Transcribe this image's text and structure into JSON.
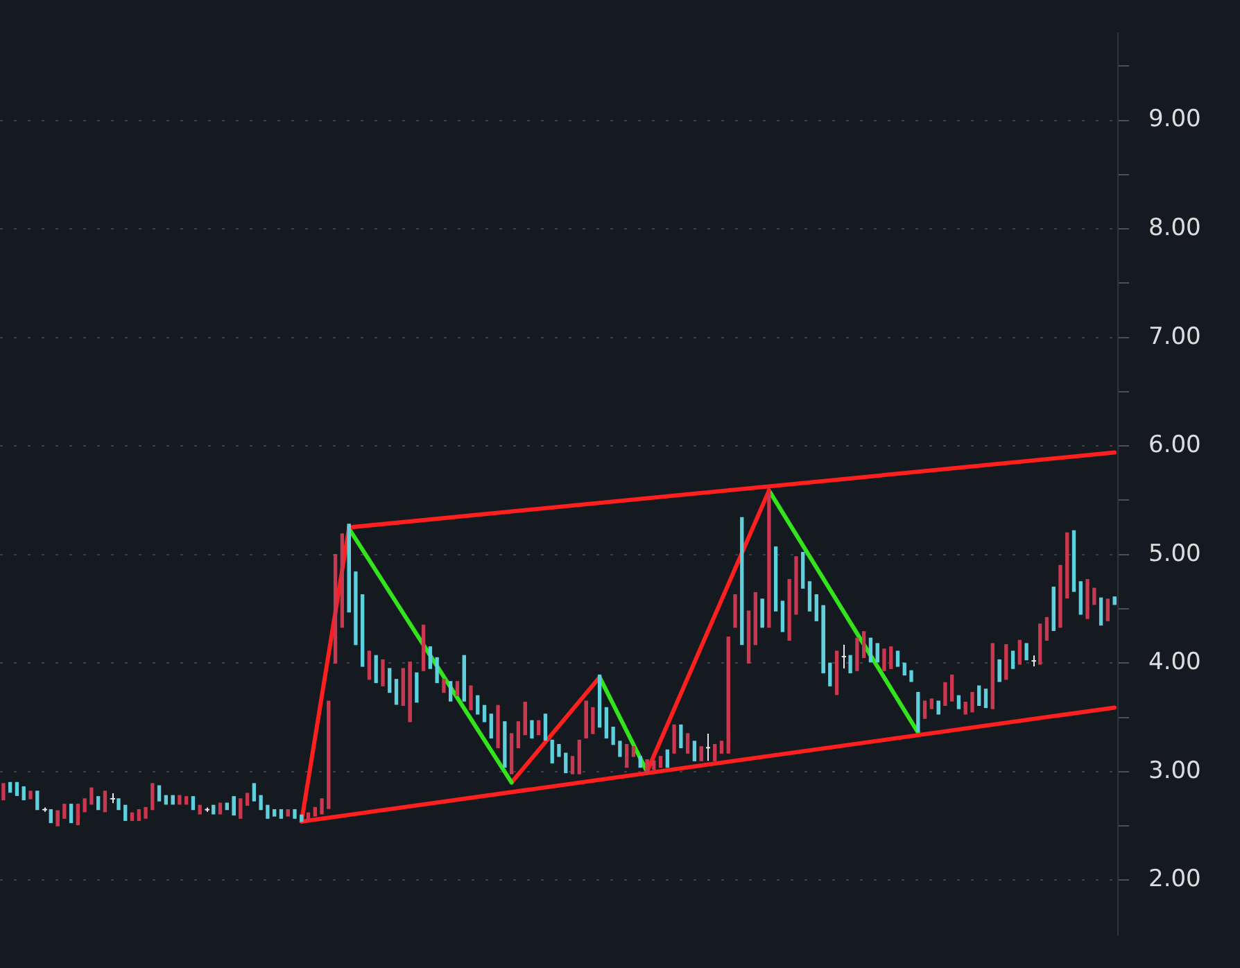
{
  "chart_data": {
    "type": "candlestick",
    "grid": "y",
    "legend": false,
    "tick_labels": "y",
    "ylim": [
      1.5,
      9.8
    ],
    "yticks": [
      {
        "value": 2,
        "label": "2.00"
      },
      {
        "value": 2.5,
        "label": null
      },
      {
        "value": 3,
        "label": "3.00"
      },
      {
        "value": 3.5,
        "label": null
      },
      {
        "value": 4,
        "label": "4.00"
      },
      {
        "value": 4.5,
        "label": null
      },
      {
        "value": 5,
        "label": "5.00"
      },
      {
        "value": 5.5,
        "label": null
      },
      {
        "value": 6,
        "label": "6.00"
      },
      {
        "value": 6.5,
        "label": null
      },
      {
        "value": 7,
        "label": "7.00"
      },
      {
        "value": 7.5,
        "label": null
      },
      {
        "value": 8,
        "label": "8.00"
      },
      {
        "value": 8.5,
        "label": null
      },
      {
        "value": 9,
        "label": "9.00"
      },
      {
        "value": 9.5,
        "label": null
      }
    ],
    "categories": [
      null,
      null,
      null,
      null,
      null,
      null,
      null,
      null,
      null,
      null,
      null,
      null,
      null,
      null,
      null,
      null,
      null,
      null,
      null,
      null,
      null,
      null,
      null,
      null,
      null,
      null,
      null,
      null,
      null,
      null,
      null,
      null,
      null,
      null,
      null,
      null,
      null,
      null,
      null,
      null,
      null,
      null,
      null,
      null,
      null,
      null,
      null,
      null,
      null,
      null,
      null,
      null,
      null,
      null,
      null,
      null,
      null,
      null,
      null,
      null,
      null,
      null,
      null,
      null,
      null,
      null,
      null,
      null,
      null,
      null,
      null,
      null,
      null,
      null,
      null,
      null,
      null,
      null,
      null,
      null,
      null,
      null,
      null,
      null,
      null,
      null,
      null,
      null,
      null,
      null,
      null,
      null,
      null,
      null,
      null,
      null,
      null,
      null,
      null,
      null,
      null,
      null,
      null,
      null,
      null,
      null,
      null,
      null,
      null,
      null,
      null,
      null,
      null,
      null,
      null,
      null,
      null,
      null,
      null,
      null,
      null,
      null,
      null,
      null,
      null,
      null,
      null,
      null,
      null,
      null,
      null,
      null,
      null,
      null,
      null,
      null,
      null,
      null,
      null,
      null,
      null,
      null,
      null,
      null,
      null,
      null,
      null,
      null,
      null,
      null,
      null,
      null,
      null,
      null,
      null,
      null,
      null,
      null,
      null,
      null,
      null,
      null,
      null,
      null,
      null
    ],
    "ohlc": [
      [
        2.74,
        2.89,
        2.74,
        2.89
      ],
      [
        2.9,
        2.9,
        2.81,
        2.81
      ],
      [
        2.9,
        2.9,
        2.78,
        2.78
      ],
      [
        2.86,
        2.86,
        2.74,
        2.74
      ],
      [
        2.75,
        2.82,
        2.75,
        2.82
      ],
      [
        2.82,
        2.82,
        2.65,
        2.65
      ],
      [
        2.65,
        2.67,
        2.63,
        2.65
      ],
      [
        2.65,
        2.65,
        2.53,
        2.53
      ],
      [
        2.5,
        2.64,
        2.5,
        2.64
      ],
      [
        2.57,
        2.7,
        2.57,
        2.7
      ],
      [
        2.7,
        2.7,
        2.53,
        2.53
      ],
      [
        2.51,
        2.7,
        2.51,
        2.7
      ],
      [
        2.63,
        2.75,
        2.63,
        2.75
      ],
      [
        2.7,
        2.85,
        2.7,
        2.85
      ],
      [
        2.77,
        2.77,
        2.65,
        2.65
      ],
      [
        2.63,
        2.82,
        2.63,
        2.82
      ],
      [
        2.75,
        2.8,
        2.71,
        2.75
      ],
      [
        2.75,
        2.75,
        2.65,
        2.65
      ],
      [
        2.69,
        2.69,
        2.55,
        2.55
      ],
      [
        2.55,
        2.62,
        2.55,
        2.62
      ],
      [
        2.55,
        2.65,
        2.55,
        2.65
      ],
      [
        2.57,
        2.67,
        2.57,
        2.67
      ],
      [
        2.65,
        2.89,
        2.65,
        2.89
      ],
      [
        2.87,
        2.87,
        2.73,
        2.73
      ],
      [
        2.78,
        2.78,
        2.7,
        2.7
      ],
      [
        2.78,
        2.78,
        2.7,
        2.7
      ],
      [
        2.7,
        2.78,
        2.7,
        2.78
      ],
      [
        2.7,
        2.77,
        2.7,
        2.77
      ],
      [
        2.77,
        2.77,
        2.65,
        2.65
      ],
      [
        2.61,
        2.69,
        2.61,
        2.69
      ],
      [
        2.65,
        2.67,
        2.63,
        2.65
      ],
      [
        2.69,
        2.69,
        2.61,
        2.61
      ],
      [
        2.61,
        2.71,
        2.61,
        2.71
      ],
      [
        2.71,
        2.71,
        2.65,
        2.65
      ],
      [
        2.77,
        2.77,
        2.6,
        2.6
      ],
      [
        2.57,
        2.75,
        2.57,
        2.75
      ],
      [
        2.69,
        2.8,
        2.69,
        2.8
      ],
      [
        2.89,
        2.89,
        2.73,
        2.73
      ],
      [
        2.78,
        2.78,
        2.65,
        2.65
      ],
      [
        2.69,
        2.69,
        2.57,
        2.57
      ],
      [
        2.65,
        2.65,
        2.59,
        2.59
      ],
      [
        2.65,
        2.65,
        2.57,
        2.57
      ],
      [
        2.59,
        2.65,
        2.59,
        2.65
      ],
      [
        2.65,
        2.65,
        2.57,
        2.57
      ],
      [
        2.6,
        2.6,
        2.54,
        2.54
      ],
      [
        2.55,
        2.62,
        2.55,
        2.62
      ],
      [
        2.59,
        2.67,
        2.59,
        2.67
      ],
      [
        2.61,
        2.75,
        2.61,
        2.75
      ],
      [
        2.66,
        3.65,
        2.66,
        3.65
      ],
      [
        4.0,
        5.0,
        4.0,
        5.0
      ],
      [
        4.33,
        5.19,
        4.33,
        5.19
      ],
      [
        5.28,
        5.28,
        4.47,
        4.47
      ],
      [
        4.84,
        4.84,
        4.17,
        4.17
      ],
      [
        4.63,
        4.63,
        3.97,
        3.97
      ],
      [
        3.85,
        4.11,
        3.85,
        4.11
      ],
      [
        4.07,
        4.07,
        3.82,
        3.82
      ],
      [
        3.79,
        4.03,
        3.79,
        4.03
      ],
      [
        3.95,
        3.95,
        3.73,
        3.73
      ],
      [
        3.85,
        3.85,
        3.62,
        3.62
      ],
      [
        3.61,
        3.95,
        3.61,
        3.95
      ],
      [
        3.46,
        4.01,
        3.46,
        4.01
      ],
      [
        3.91,
        3.91,
        3.64,
        3.64
      ],
      [
        3.93,
        4.35,
        3.93,
        4.35
      ],
      [
        4.15,
        4.15,
        3.95,
        3.95
      ],
      [
        4.05,
        4.05,
        3.82,
        3.82
      ],
      [
        3.73,
        3.85,
        3.73,
        3.85
      ],
      [
        3.83,
        3.83,
        3.65,
        3.65
      ],
      [
        3.7,
        3.83,
        3.7,
        3.83
      ],
      [
        4.07,
        4.07,
        3.65,
        3.65
      ],
      [
        3.57,
        3.79,
        3.57,
        3.79
      ],
      [
        3.7,
        3.7,
        3.53,
        3.53
      ],
      [
        3.61,
        3.61,
        3.46,
        3.46
      ],
      [
        3.53,
        3.53,
        3.31,
        3.31
      ],
      [
        3.22,
        3.61,
        3.22,
        3.61
      ],
      [
        3.46,
        3.46,
        3.04,
        3.04
      ],
      [
        2.98,
        3.35,
        2.98,
        3.35
      ],
      [
        3.22,
        3.46,
        3.22,
        3.46
      ],
      [
        3.34,
        3.64,
        3.34,
        3.64
      ],
      [
        3.47,
        3.47,
        3.31,
        3.31
      ],
      [
        3.34,
        3.47,
        3.34,
        3.47
      ],
      [
        3.53,
        3.53,
        3.29,
        3.29
      ],
      [
        3.29,
        3.29,
        3.08,
        3.08
      ],
      [
        3.25,
        3.25,
        3.14,
        3.14
      ],
      [
        3.17,
        3.17,
        2.99,
        2.99
      ],
      [
        2.98,
        3.14,
        2.98,
        3.14
      ],
      [
        2.98,
        3.29,
        2.98,
        3.29
      ],
      [
        3.31,
        3.65,
        3.31,
        3.65
      ],
      [
        3.35,
        3.59,
        3.35,
        3.59
      ],
      [
        3.89,
        3.89,
        3.41,
        3.41
      ],
      [
        3.59,
        3.59,
        3.31,
        3.31
      ],
      [
        3.41,
        3.41,
        3.25,
        3.25
      ],
      [
        3.28,
        3.28,
        3.14,
        3.14
      ],
      [
        3.04,
        3.25,
        3.04,
        3.25
      ],
      [
        3.14,
        3.23,
        3.14,
        3.23
      ],
      [
        3.14,
        3.14,
        3.04,
        3.04
      ],
      [
        2.99,
        3.11,
        2.99,
        3.11
      ],
      [
        3.02,
        3.1,
        3.02,
        3.1
      ],
      [
        3.04,
        3.14,
        3.04,
        3.14
      ],
      [
        3.2,
        3.2,
        3.04,
        3.04
      ],
      [
        3.17,
        3.43,
        3.17,
        3.43
      ],
      [
        3.43,
        3.43,
        3.22,
        3.22
      ],
      [
        3.17,
        3.35,
        3.17,
        3.35
      ],
      [
        3.28,
        3.28,
        3.1,
        3.1
      ],
      [
        3.1,
        3.23,
        3.1,
        3.23
      ],
      [
        3.22,
        3.35,
        3.1,
        3.22
      ],
      [
        3.1,
        3.25,
        3.1,
        3.25
      ],
      [
        3.17,
        3.28,
        3.17,
        3.28
      ],
      [
        3.17,
        4.24,
        3.17,
        4.24
      ],
      [
        4.33,
        4.63,
        4.33,
        4.63
      ],
      [
        5.34,
        5.34,
        4.17,
        4.17
      ],
      [
        4.0,
        4.48,
        4.0,
        4.48
      ],
      [
        4.17,
        4.65,
        4.17,
        4.65
      ],
      [
        4.59,
        4.59,
        4.33,
        4.33
      ],
      [
        4.33,
        5.56,
        4.33,
        5.56
      ],
      [
        5.07,
        5.07,
        4.48,
        4.48
      ],
      [
        4.57,
        4.57,
        4.29,
        4.29
      ],
      [
        4.21,
        4.77,
        4.21,
        4.77
      ],
      [
        4.45,
        4.98,
        4.45,
        4.98
      ],
      [
        5.02,
        5.02,
        4.69,
        4.69
      ],
      [
        4.75,
        4.75,
        4.48,
        4.48
      ],
      [
        4.63,
        4.63,
        4.39,
        4.39
      ],
      [
        4.53,
        4.53,
        3.91,
        3.91
      ],
      [
        4.0,
        4.0,
        3.79,
        3.79
      ],
      [
        3.71,
        4.11,
        3.71,
        4.11
      ],
      [
        4.06,
        4.17,
        3.95,
        4.06
      ],
      [
        4.07,
        4.07,
        3.91,
        3.91
      ],
      [
        3.93,
        4.23,
        3.93,
        4.23
      ],
      [
        4.05,
        4.29,
        4.05,
        4.29
      ],
      [
        4.23,
        4.23,
        4.01,
        4.01
      ],
      [
        4.18,
        4.18,
        4.01,
        4.01
      ],
      [
        3.93,
        4.13,
        3.93,
        4.13
      ],
      [
        3.95,
        4.15,
        3.95,
        4.15
      ],
      [
        4.11,
        4.11,
        3.97,
        3.97
      ],
      [
        4.0,
        4.0,
        3.89,
        3.89
      ],
      [
        3.93,
        3.93,
        3.83,
        3.83
      ],
      [
        3.73,
        3.73,
        3.37,
        3.37
      ],
      [
        3.49,
        3.65,
        3.49,
        3.65
      ],
      [
        3.58,
        3.67,
        3.58,
        3.67
      ],
      [
        3.65,
        3.65,
        3.53,
        3.53
      ],
      [
        3.61,
        3.82,
        3.61,
        3.82
      ],
      [
        3.65,
        3.89,
        3.65,
        3.89
      ],
      [
        3.7,
        3.7,
        3.58,
        3.58
      ],
      [
        3.53,
        3.64,
        3.53,
        3.64
      ],
      [
        3.55,
        3.73,
        3.55,
        3.73
      ],
      [
        3.79,
        3.79,
        3.61,
        3.61
      ],
      [
        3.76,
        3.76,
        3.59,
        3.59
      ],
      [
        3.58,
        4.18,
        3.58,
        4.18
      ],
      [
        4.03,
        4.03,
        3.83,
        3.83
      ],
      [
        3.85,
        4.17,
        3.85,
        4.17
      ],
      [
        4.11,
        4.11,
        3.95,
        3.95
      ],
      [
        3.99,
        4.21,
        3.99,
        4.21
      ],
      [
        4.18,
        4.18,
        4.03,
        4.03
      ],
      [
        4.02,
        4.07,
        3.97,
        4.02
      ],
      [
        3.99,
        4.36,
        3.99,
        4.36
      ],
      [
        4.21,
        4.42,
        4.21,
        4.42
      ],
      [
        4.7,
        4.7,
        4.3,
        4.3
      ],
      [
        4.33,
        4.9,
        4.33,
        4.9
      ],
      [
        4.6,
        5.2,
        4.6,
        5.2
      ],
      [
        5.22,
        5.22,
        4.66,
        4.66
      ],
      [
        4.75,
        4.75,
        4.45,
        4.45
      ],
      [
        4.41,
        4.77,
        4.41,
        4.77
      ],
      [
        4.54,
        4.69,
        4.54,
        4.69
      ],
      [
        4.6,
        4.6,
        4.35,
        4.35
      ],
      [
        4.39,
        4.59,
        4.39,
        4.59
      ],
      [
        4.61,
        4.61,
        4.54,
        4.54
      ]
    ],
    "colors": [
      "#c9384f",
      "#5ecfdc",
      "#5ecfdc",
      "#5ecfdc",
      "#c9384f",
      "#5ecfdc",
      "#e6e6e6",
      "#5ecfdc",
      "#c9384f",
      "#c9384f",
      "#5ecfdc",
      "#c9384f",
      "#c9384f",
      "#c9384f",
      "#5ecfdc",
      "#c9384f",
      "#e6e6e6",
      "#5ecfdc",
      "#5ecfdc",
      "#c9384f",
      "#c9384f",
      "#c9384f",
      "#c9384f",
      "#5ecfdc",
      "#5ecfdc",
      "#5ecfdc",
      "#c9384f",
      "#c9384f",
      "#5ecfdc",
      "#c9384f",
      "#e6e6e6",
      "#5ecfdc",
      "#c9384f",
      "#5ecfdc",
      "#5ecfdc",
      "#c9384f",
      "#c9384f",
      "#5ecfdc",
      "#5ecfdc",
      "#5ecfdc",
      "#5ecfdc",
      "#5ecfdc",
      "#c9384f",
      "#5ecfdc",
      "#5ecfdc",
      "#c9384f",
      "#c9384f",
      "#c9384f",
      "#c9384f",
      "#c9384f",
      "#c9384f",
      "#5ecfdc",
      "#5ecfdc",
      "#5ecfdc",
      "#c9384f",
      "#5ecfdc",
      "#c9384f",
      "#5ecfdc",
      "#5ecfdc",
      "#c9384f",
      "#c9384f",
      "#5ecfdc",
      "#c9384f",
      "#5ecfdc",
      "#5ecfdc",
      "#c9384f",
      "#5ecfdc",
      "#c9384f",
      "#5ecfdc",
      "#c9384f",
      "#5ecfdc",
      "#5ecfdc",
      "#5ecfdc",
      "#c9384f",
      "#5ecfdc",
      "#c9384f",
      "#c9384f",
      "#c9384f",
      "#5ecfdc",
      "#c9384f",
      "#5ecfdc",
      "#5ecfdc",
      "#5ecfdc",
      "#5ecfdc",
      "#c9384f",
      "#c9384f",
      "#c9384f",
      "#c9384f",
      "#5ecfdc",
      "#5ecfdc",
      "#5ecfdc",
      "#5ecfdc",
      "#c9384f",
      "#c9384f",
      "#5ecfdc",
      "#c9384f",
      "#c9384f",
      "#c9384f",
      "#5ecfdc",
      "#c9384f",
      "#5ecfdc",
      "#c9384f",
      "#5ecfdc",
      "#c9384f",
      "#e6e6e6",
      "#c9384f",
      "#c9384f",
      "#c9384f",
      "#c9384f",
      "#5ecfdc",
      "#c9384f",
      "#c9384f",
      "#5ecfdc",
      "#c9384f",
      "#5ecfdc",
      "#5ecfdc",
      "#c9384f",
      "#c9384f",
      "#5ecfdc",
      "#5ecfdc",
      "#5ecfdc",
      "#5ecfdc",
      "#5ecfdc",
      "#c9384f",
      "#e6e6e6",
      "#5ecfdc",
      "#c9384f",
      "#c9384f",
      "#5ecfdc",
      "#5ecfdc",
      "#c9384f",
      "#c9384f",
      "#5ecfdc",
      "#5ecfdc",
      "#5ecfdc",
      "#5ecfdc",
      "#c9384f",
      "#c9384f",
      "#5ecfdc",
      "#c9384f",
      "#c9384f",
      "#5ecfdc",
      "#c9384f",
      "#c9384f",
      "#5ecfdc",
      "#5ecfdc",
      "#c9384f",
      "#5ecfdc",
      "#c9384f",
      "#5ecfdc",
      "#c9384f",
      "#5ecfdc",
      "#e6e6e6",
      "#c9384f",
      "#c9384f",
      "#5ecfdc",
      "#c9384f",
      "#c9384f",
      "#5ecfdc",
      "#5ecfdc",
      "#c9384f",
      "#c9384f",
      "#5ecfdc",
      "#c9384f",
      "#5ecfdc"
    ],
    "series": [
      {
        "type": "line",
        "color": "#ff1f1f",
        "values": [
          null,
          null,
          null,
          null,
          null,
          null,
          null,
          null,
          null,
          null,
          null,
          null,
          null,
          null,
          null,
          null,
          null,
          null,
          null,
          null,
          null,
          null,
          null,
          null,
          null,
          null,
          null,
          null,
          null,
          null,
          null,
          null,
          null,
          null,
          null,
          null,
          null,
          null,
          null,
          null,
          null,
          null,
          null,
          null,
          2.54,
          null,
          null,
          null,
          null,
          null,
          null,
          null,
          null,
          null,
          null,
          null,
          null,
          null,
          null,
          null,
          null,
          null,
          null,
          null,
          null,
          null,
          null,
          null,
          null,
          null,
          null,
          null,
          null,
          null,
          null,
          null,
          null,
          null,
          null,
          null,
          null,
          null,
          null,
          null,
          null,
          null,
          null,
          null,
          null,
          null,
          null,
          null,
          null,
          null,
          null,
          null,
          null,
          null,
          null,
          null,
          null,
          null,
          null,
          null,
          null,
          null,
          null,
          null,
          null,
          null,
          null,
          null,
          null,
          null,
          null,
          null,
          null,
          null,
          null,
          null,
          null,
          null,
          null,
          null,
          null,
          null,
          null,
          null,
          null,
          null,
          null,
          null,
          null,
          null,
          null,
          null,
          null,
          null,
          null,
          null,
          null,
          null,
          null,
          null,
          null,
          null,
          null,
          null,
          null,
          null,
          null,
          null,
          null,
          null,
          null,
          null,
          null,
          null,
          null,
          null,
          null,
          null,
          null,
          null,
          3.59
        ]
      },
      {
        "type": "line",
        "color": "#ff1f1f",
        "values": [
          null,
          null,
          null,
          null,
          null,
          null,
          null,
          null,
          null,
          null,
          null,
          null,
          null,
          null,
          null,
          null,
          null,
          null,
          null,
          null,
          null,
          null,
          null,
          null,
          null,
          null,
          null,
          null,
          null,
          null,
          null,
          null,
          null,
          null,
          null,
          null,
          null,
          null,
          null,
          null,
          null,
          null,
          null,
          null,
          null,
          null,
          null,
          null,
          null,
          null,
          null,
          5.25,
          null,
          null,
          null,
          null,
          null,
          null,
          null,
          null,
          null,
          null,
          null,
          null,
          null,
          null,
          null,
          null,
          null,
          null,
          null,
          null,
          null,
          null,
          null,
          null,
          null,
          null,
          null,
          null,
          null,
          null,
          null,
          null,
          null,
          null,
          null,
          null,
          null,
          null,
          null,
          null,
          null,
          null,
          null,
          null,
          null,
          null,
          null,
          null,
          null,
          null,
          null,
          null,
          null,
          null,
          null,
          null,
          null,
          null,
          null,
          null,
          null,
          null,
          null,
          null,
          null,
          null,
          null,
          null,
          null,
          null,
          null,
          null,
          null,
          null,
          null,
          null,
          null,
          null,
          null,
          null,
          null,
          null,
          null,
          null,
          null,
          null,
          null,
          null,
          null,
          null,
          null,
          null,
          null,
          null,
          null,
          null,
          null,
          null,
          null,
          null,
          null,
          null,
          null,
          null,
          null,
          null,
          null,
          null,
          null,
          null,
          null,
          null,
          5.94
        ]
      },
      {
        "type": "line",
        "color": "#ff1f1f",
        "values": [
          null,
          null,
          null,
          null,
          null,
          null,
          null,
          null,
          null,
          null,
          null,
          null,
          null,
          null,
          null,
          null,
          null,
          null,
          null,
          null,
          null,
          null,
          null,
          null,
          null,
          null,
          null,
          null,
          null,
          null,
          null,
          null,
          null,
          null,
          null,
          null,
          null,
          null,
          null,
          null,
          null,
          null,
          null,
          null,
          2.54,
          null,
          null,
          null,
          null,
          null,
          null,
          5.24,
          null,
          null,
          null,
          null,
          null,
          null,
          null,
          null,
          null,
          null,
          null,
          null,
          null,
          null,
          null,
          null,
          null,
          null,
          null,
          null,
          null,
          null,
          null,
          null,
          null,
          null,
          null,
          null,
          null,
          null,
          null,
          null,
          null,
          null,
          null,
          null,
          null,
          null,
          null,
          null,
          null,
          null,
          null,
          null,
          null,
          null,
          null,
          null,
          null,
          null,
          null,
          null,
          null,
          null,
          null,
          null,
          null,
          null,
          null,
          null,
          null,
          null,
          null,
          null,
          null,
          null,
          null,
          null,
          null,
          null,
          null,
          null,
          null,
          null,
          null,
          null,
          null,
          null,
          null,
          null,
          null,
          null,
          null,
          null,
          null,
          null,
          null,
          null,
          null,
          null,
          null,
          null,
          null,
          null,
          null,
          null,
          null,
          null,
          null,
          null,
          null,
          null,
          null,
          null,
          null,
          null,
          null,
          null,
          null,
          null,
          null,
          null,
          null
        ]
      },
      {
        "type": "line",
        "color": "#33e31c",
        "values": [
          null,
          null,
          null,
          null,
          null,
          null,
          null,
          null,
          null,
          null,
          null,
          null,
          null,
          null,
          null,
          null,
          null,
          null,
          null,
          null,
          null,
          null,
          null,
          null,
          null,
          null,
          null,
          null,
          null,
          null,
          null,
          null,
          null,
          null,
          null,
          null,
          null,
          null,
          null,
          null,
          null,
          null,
          null,
          null,
          null,
          null,
          null,
          null,
          null,
          null,
          null,
          5.24,
          null,
          null,
          null,
          null,
          null,
          null,
          null,
          null,
          null,
          null,
          null,
          null,
          null,
          null,
          null,
          null,
          null,
          null,
          null,
          null,
          null,
          null,
          null,
          2.9,
          null,
          null,
          null,
          null,
          null,
          null,
          null,
          null,
          null,
          null,
          null,
          null,
          null,
          null,
          null,
          null,
          null,
          null,
          null,
          null,
          null,
          null,
          null,
          null,
          null,
          null,
          null,
          null,
          null,
          null,
          null,
          null,
          null,
          null,
          null,
          null,
          null,
          null,
          null,
          null,
          null,
          null,
          null,
          null,
          null,
          null,
          null,
          null,
          null,
          null,
          null,
          null,
          null,
          null,
          null,
          null,
          null,
          null,
          null,
          null,
          null,
          null,
          null,
          null,
          null,
          null,
          null,
          null,
          null,
          null,
          null,
          null,
          null,
          null,
          null,
          null,
          null,
          null,
          null,
          null,
          null,
          null,
          null,
          null,
          null,
          null,
          null,
          null,
          null
        ]
      },
      {
        "type": "line",
        "color": "#ff1f1f",
        "values": [
          null,
          null,
          null,
          null,
          null,
          null,
          null,
          null,
          null,
          null,
          null,
          null,
          null,
          null,
          null,
          null,
          null,
          null,
          null,
          null,
          null,
          null,
          null,
          null,
          null,
          null,
          null,
          null,
          null,
          null,
          null,
          null,
          null,
          null,
          null,
          null,
          null,
          null,
          null,
          null,
          null,
          null,
          null,
          null,
          null,
          null,
          null,
          null,
          null,
          null,
          null,
          null,
          null,
          null,
          null,
          null,
          null,
          null,
          null,
          null,
          null,
          null,
          null,
          null,
          null,
          null,
          null,
          null,
          null,
          null,
          null,
          null,
          null,
          null,
          null,
          2.9,
          null,
          null,
          null,
          null,
          null,
          null,
          null,
          null,
          null,
          null,
          null,
          null,
          3.87,
          null,
          null,
          null,
          null,
          null,
          null,
          null,
          null,
          null,
          null,
          null,
          null,
          null,
          null,
          null,
          null,
          null,
          null,
          null,
          null,
          null,
          null,
          null,
          null,
          null,
          null,
          null,
          null,
          null,
          null,
          null,
          null,
          null,
          null,
          null,
          null,
          null,
          null,
          null,
          null,
          null,
          null,
          null,
          null,
          null,
          null,
          null,
          null,
          null,
          null,
          null,
          null,
          null,
          null,
          null,
          null,
          null,
          null,
          null,
          null,
          null,
          null,
          null,
          null,
          null,
          null,
          null,
          null,
          null,
          null,
          null,
          null,
          null,
          null,
          null,
          null
        ]
      },
      {
        "type": "line",
        "color": "#33e31c",
        "values": [
          null,
          null,
          null,
          null,
          null,
          null,
          null,
          null,
          null,
          null,
          null,
          null,
          null,
          null,
          null,
          null,
          null,
          null,
          null,
          null,
          null,
          null,
          null,
          null,
          null,
          null,
          null,
          null,
          null,
          null,
          null,
          null,
          null,
          null,
          null,
          null,
          null,
          null,
          null,
          null,
          null,
          null,
          null,
          null,
          null,
          null,
          null,
          null,
          null,
          null,
          null,
          null,
          null,
          null,
          null,
          null,
          null,
          null,
          null,
          null,
          null,
          null,
          null,
          null,
          null,
          null,
          null,
          null,
          null,
          null,
          null,
          null,
          null,
          null,
          null,
          null,
          null,
          null,
          null,
          null,
          null,
          null,
          null,
          null,
          null,
          null,
          null,
          null,
          3.87,
          null,
          null,
          null,
          null,
          null,
          null,
          3.0,
          null,
          null,
          null,
          null,
          null,
          null,
          null,
          null,
          null,
          null,
          null,
          null,
          null,
          null,
          null,
          null,
          null,
          null,
          null,
          null,
          null,
          null,
          null,
          null,
          null,
          null,
          null,
          null,
          null,
          null,
          null,
          null,
          null,
          null,
          null,
          null,
          null,
          null,
          null,
          null,
          null,
          null,
          null,
          null,
          null,
          null,
          null,
          null,
          null,
          null,
          null,
          null,
          null,
          null,
          null,
          null,
          null,
          null,
          null,
          null,
          null,
          null,
          null,
          null,
          null,
          null,
          null,
          null,
          null
        ]
      },
      {
        "type": "line",
        "color": "#ff1f1f",
        "values": [
          null,
          null,
          null,
          null,
          null,
          null,
          null,
          null,
          null,
          null,
          null,
          null,
          null,
          null,
          null,
          null,
          null,
          null,
          null,
          null,
          null,
          null,
          null,
          null,
          null,
          null,
          null,
          null,
          null,
          null,
          null,
          null,
          null,
          null,
          null,
          null,
          null,
          null,
          null,
          null,
          null,
          null,
          null,
          null,
          null,
          null,
          null,
          null,
          null,
          null,
          null,
          null,
          null,
          null,
          null,
          null,
          null,
          null,
          null,
          null,
          null,
          null,
          null,
          null,
          null,
          null,
          null,
          null,
          null,
          null,
          null,
          null,
          null,
          null,
          null,
          null,
          null,
          null,
          null,
          null,
          null,
          null,
          null,
          null,
          null,
          null,
          null,
          null,
          null,
          null,
          null,
          null,
          null,
          null,
          null,
          3.0,
          null,
          null,
          null,
          null,
          null,
          null,
          null,
          null,
          null,
          null,
          null,
          null,
          null,
          null,
          null,
          null,
          null,
          5.59,
          null,
          null,
          null,
          null,
          null,
          null,
          null,
          null,
          null,
          null,
          null,
          null,
          null,
          null,
          null,
          null,
          null,
          null,
          null,
          null,
          null,
          null,
          null,
          null,
          null,
          null,
          null,
          null,
          null,
          null,
          null,
          null,
          null,
          null,
          null,
          null,
          null,
          null,
          null,
          null,
          null,
          null,
          null,
          null,
          null,
          null,
          null,
          null,
          null,
          null,
          null
        ]
      },
      {
        "type": "line",
        "color": "#33e31c",
        "values": [
          null,
          null,
          null,
          null,
          null,
          null,
          null,
          null,
          null,
          null,
          null,
          null,
          null,
          null,
          null,
          null,
          null,
          null,
          null,
          null,
          null,
          null,
          null,
          null,
          null,
          null,
          null,
          null,
          null,
          null,
          null,
          null,
          null,
          null,
          null,
          null,
          null,
          null,
          null,
          null,
          null,
          null,
          null,
          null,
          null,
          null,
          null,
          null,
          null,
          null,
          null,
          null,
          null,
          null,
          null,
          null,
          null,
          null,
          null,
          null,
          null,
          null,
          null,
          null,
          null,
          null,
          null,
          null,
          null,
          null,
          null,
          null,
          null,
          null,
          null,
          null,
          null,
          null,
          null,
          null,
          null,
          null,
          null,
          null,
          null,
          null,
          null,
          null,
          null,
          null,
          null,
          null,
          null,
          null,
          null,
          null,
          null,
          null,
          null,
          null,
          null,
          null,
          null,
          null,
          null,
          null,
          null,
          null,
          null,
          null,
          null,
          null,
          null,
          5.59,
          null,
          null,
          null,
          null,
          null,
          null,
          null,
          null,
          null,
          null,
          null,
          null,
          null,
          null,
          null,
          null,
          null,
          null,
          null,
          null,
          null,
          3.36,
          null,
          null,
          null,
          null,
          null,
          null,
          null,
          null,
          null,
          null,
          null,
          null,
          null,
          null,
          null,
          null,
          null,
          null,
          null,
          null,
          null,
          null,
          null,
          null,
          null,
          null,
          null,
          null,
          null
        ]
      }
    ]
  }
}
